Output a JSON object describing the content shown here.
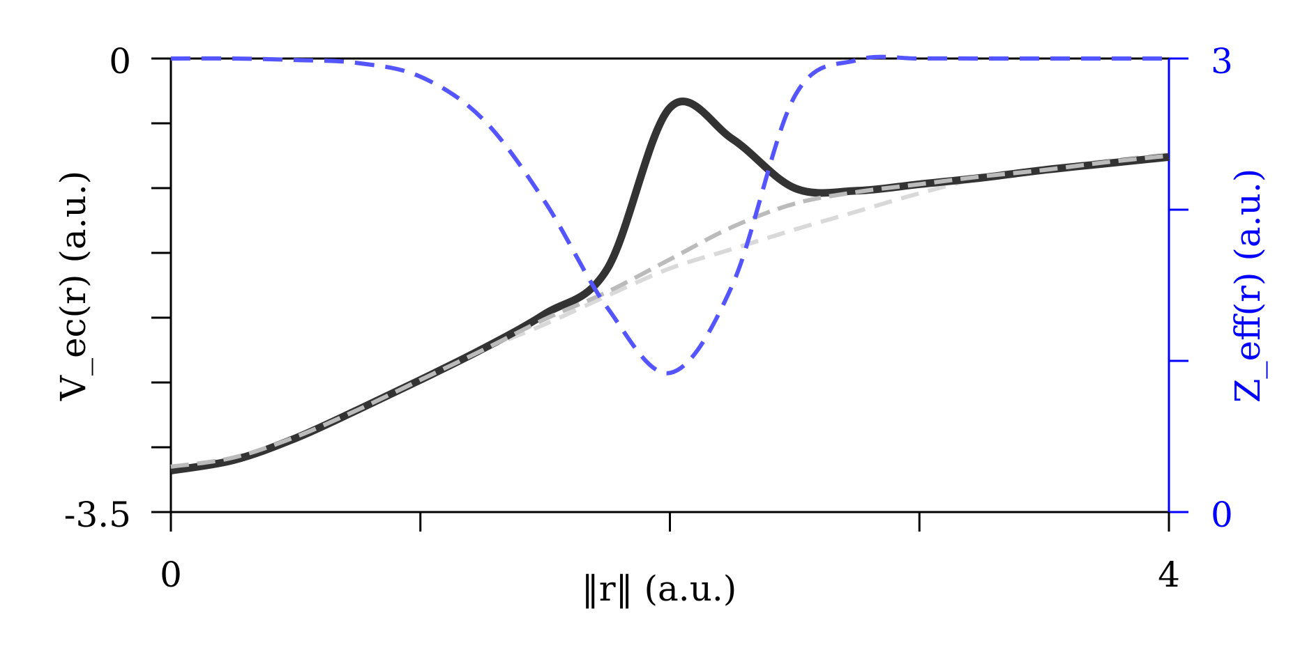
{
  "chart_data": {
    "type": "line",
    "xlabel": "‖r‖ (a.u.)",
    "ylabel_left": "V_ec(r) (a.u.)",
    "ylabel_right": "Z_eff(r) (a.u.)",
    "xlim": [
      0,
      4
    ],
    "ylim_left": [
      -3.5,
      0
    ],
    "ylim_right": [
      0,
      3
    ],
    "x_tick_labels": [
      "0",
      "4"
    ],
    "y_left_tick_labels": [
      "0",
      "-3.5"
    ],
    "y_right_tick_labels": [
      "3",
      "0"
    ],
    "grid": false,
    "colors": {
      "axis_left": "#000000",
      "axis_right": "#0000ff",
      "solid_curve": "#333333",
      "dashed_gray": "#bbbbbb",
      "dashed_light": "#d9d9d9",
      "dashed_blue": "#5555ff"
    },
    "x": [
      0.0,
      0.25,
      0.5,
      0.75,
      1.0,
      1.25,
      1.5,
      1.75,
      2.0,
      2.25,
      2.5,
      2.75,
      3.0,
      3.25,
      3.5,
      3.75,
      4.0
    ],
    "series": [
      {
        "axis": "left",
        "style": "solid-thick",
        "values": [
          -3.18,
          -3.1,
          -2.93,
          -2.71,
          -2.48,
          -2.24,
          -1.97,
          -1.62,
          -0.38,
          -0.62,
          -1.0,
          -1.02,
          -0.97,
          -0.92,
          -0.86,
          -0.81,
          -0.76
        ]
      },
      {
        "axis": "left",
        "style": "dashed-gray",
        "values": [
          -3.15,
          -3.08,
          -2.92,
          -2.71,
          -2.48,
          -2.25,
          -2.01,
          -1.8,
          -1.55,
          -1.3,
          -1.12,
          -1.03,
          -0.97,
          -0.91,
          -0.86,
          -0.8,
          -0.75
        ]
      },
      {
        "axis": "left",
        "style": "dashed-light",
        "values": [
          -3.15,
          -3.08,
          -2.92,
          -2.71,
          -2.48,
          -2.25,
          -2.05,
          -1.83,
          -1.62,
          -1.47,
          -1.32,
          -1.18,
          -1.04,
          -0.92,
          -0.85,
          -0.79,
          -0.74
        ]
      },
      {
        "axis": "right",
        "style": "dashed-blue",
        "values": [
          3.0,
          3.0,
          2.99,
          2.97,
          2.88,
          2.6,
          2.05,
          1.35,
          0.92,
          1.5,
          2.75,
          2.99,
          3.0,
          3.0,
          3.0,
          3.0,
          3.0
        ]
      }
    ]
  }
}
